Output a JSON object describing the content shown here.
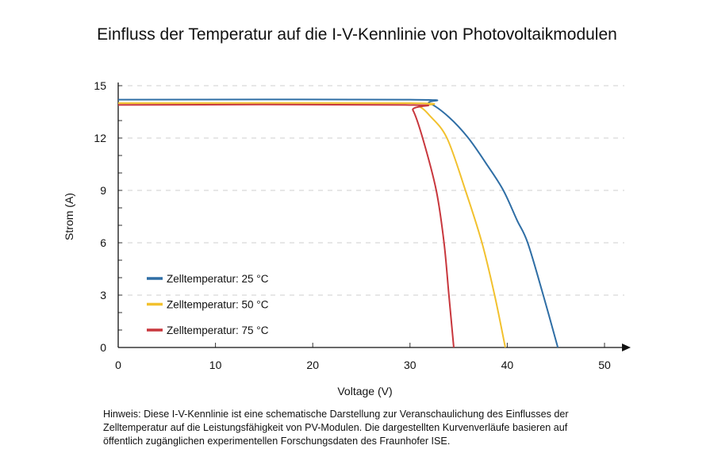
{
  "chart_data": {
    "type": "line",
    "title": "Einfluss der Temperatur auf die I-V-Kennlinie von Photovoltaikmodulen",
    "xlabel": "Voltage (V)",
    "ylabel": "Strom (A)",
    "xlim": [
      0,
      50
    ],
    "ylim": [
      0,
      15
    ],
    "xticks": [
      "0",
      "10",
      "20",
      "30",
      "40",
      "50"
    ],
    "yticks": [
      "0",
      "3",
      "6",
      "9",
      "12",
      "15"
    ],
    "grid": "horizontal dashed",
    "legend": "bottom-left",
    "series": [
      {
        "name": "Zelltemperatur: 25 °C",
        "color": "#2f6ea5",
        "x": [
          0,
          30,
          32,
          34,
          36,
          38,
          39.6,
          41,
          42.1,
          43.7,
          45.2
        ],
        "y": [
          14.2,
          14.2,
          14.0,
          13.2,
          12.0,
          10.4,
          9.0,
          7.3,
          6.0,
          3.0,
          0
        ]
      },
      {
        "name": "Zelltemperatur: 50 °C",
        "color": "#f2c12e",
        "x": [
          0,
          30,
          31,
          32,
          33.8,
          35.7,
          37.4,
          38.7,
          39.8
        ],
        "y": [
          14.0,
          14.0,
          13.8,
          13.3,
          12.0,
          9.0,
          6.0,
          3.0,
          0
        ]
      },
      {
        "name": "Zelltemperatur: 75 °C",
        "color": "#c8373d",
        "x": [
          0,
          29.5,
          30.3,
          31.3,
          32.7,
          33.5,
          34.0,
          34.5
        ],
        "y": [
          13.9,
          13.9,
          13.6,
          12.0,
          9.0,
          6.0,
          3.0,
          0
        ]
      }
    ]
  },
  "note": "Hinweis: Diese I-V-Kennlinie ist eine schematische Darstellung zur Veranschaulichung des Einflusses der Zelltemperatur auf die Leistungsfähigkeit von PV-Modulen. Die dargestellten Kurvenverläufe basieren auf öffentlich zugänglichen experimentellen Forschungsdaten des Fraunhofer ISE."
}
